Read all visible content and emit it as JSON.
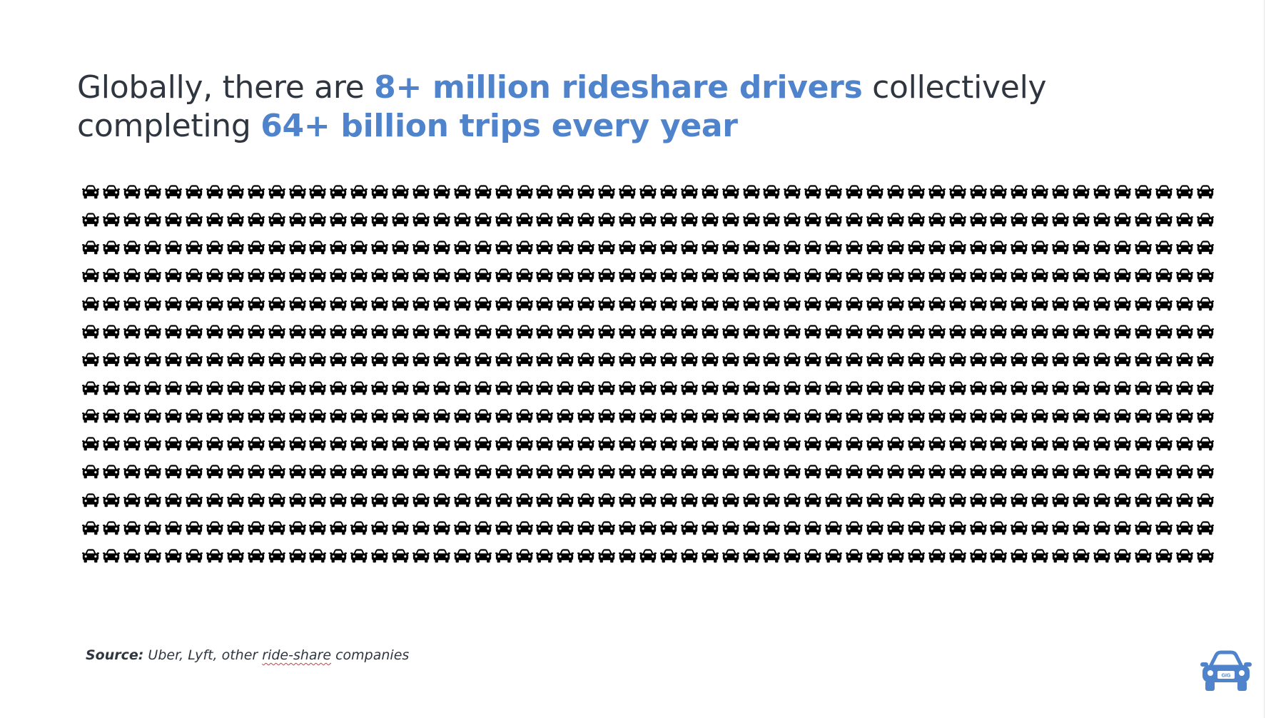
{
  "headline": {
    "lead": "Globally, there are ",
    "highlight1": "8+ million rideshare drivers",
    "middle": " collectively completing ",
    "highlight2": "64+ billion trips every year"
  },
  "pictogram": {
    "icon": "car-icon",
    "rows": 14,
    "columns": 55,
    "color": "#000000"
  },
  "source": {
    "label": "Source:",
    "prefix": " Uber, Lyft, other ",
    "flagged_word": "ride-share",
    "suffix": " companies"
  },
  "logo": {
    "icon": "car-icon",
    "plate_text": "GIG",
    "color": "#4f84cc"
  },
  "colors": {
    "accent": "#4f84cc",
    "text": "#2f3640"
  }
}
